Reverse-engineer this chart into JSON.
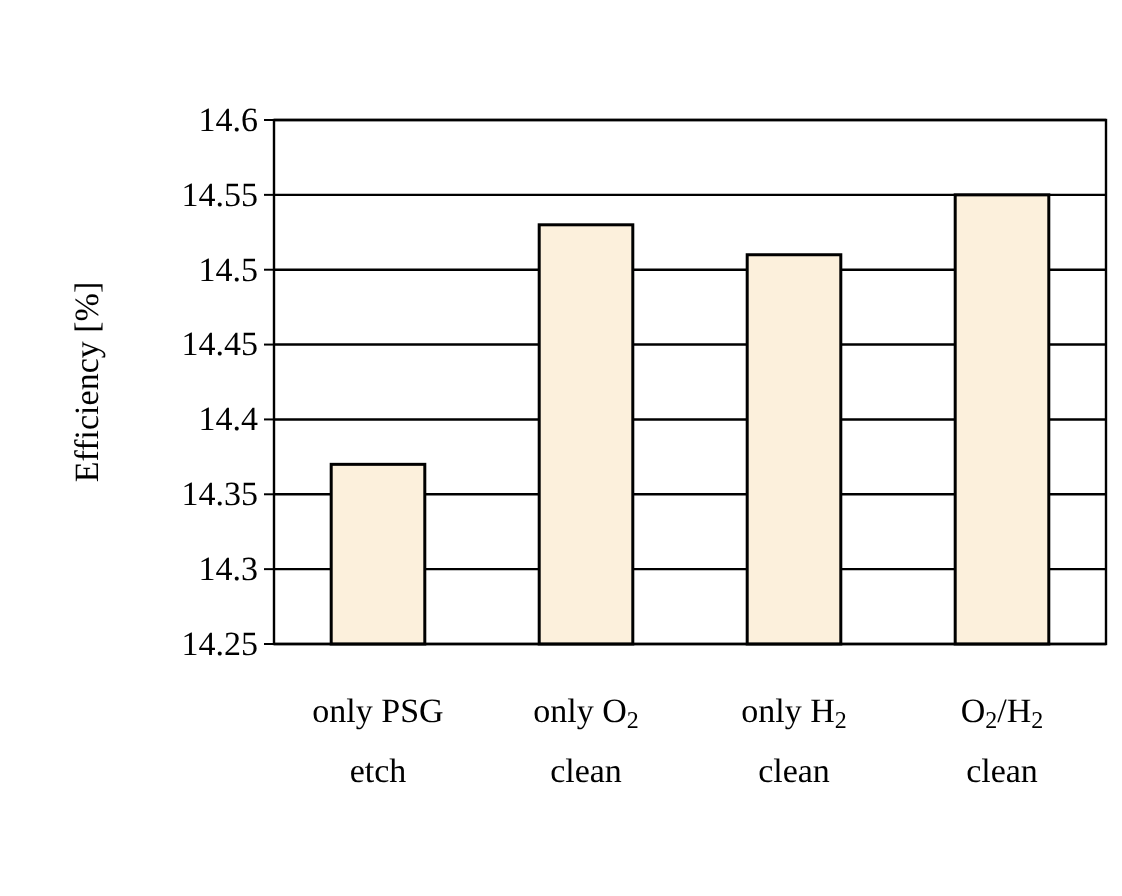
{
  "chart_data": {
    "type": "bar",
    "ylabel": "Efficiency [%]",
    "categories": [
      "only PSG etch",
      "only O$_{2}$ clean",
      "only H$_{2}$ clean",
      "O$_{2}$/H$_{2}$ clean"
    ],
    "values": [
      14.37,
      14.53,
      14.51,
      14.55
    ],
    "color": "#fcf0dc",
    "ylim": [
      14.25,
      14.6
    ],
    "yticks": [
      14.25,
      14.3,
      14.35,
      14.4,
      14.45,
      14.5,
      14.55,
      14.6
    ],
    "grid": "y"
  }
}
